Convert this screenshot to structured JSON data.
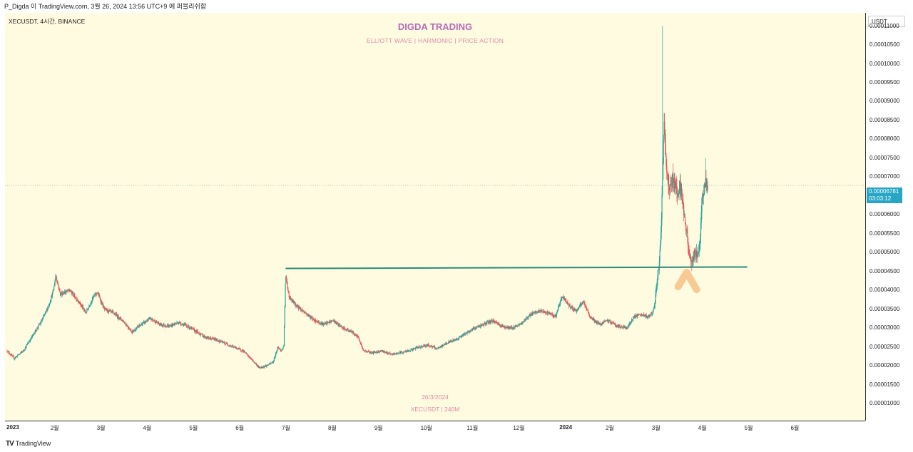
{
  "header": {
    "text": "P_Digda 이 TradingView.com, 3월 26, 2024 13:56 UTC+9 에 퍼블리쉬함"
  },
  "symbol_line": "XECUSDT, 4시간, BINANCE",
  "brand": {
    "title": "DIGDA TRADING",
    "subtitle": "ELLIOTT WAVE   |   HARMONIC   |   PRICE ACTION"
  },
  "watermark": {
    "date": "26/3/2024",
    "pair": "XECUSDT | 240M"
  },
  "currency": "USDT",
  "last_price": {
    "value": "0.00006781",
    "countdown": "03:03:12"
  },
  "footer": {
    "logo": "TradingView"
  },
  "colors": {
    "background": "#fffbe1",
    "up": "#26a69a",
    "down": "#ef5350",
    "support_line": "#2a8a7a",
    "marker": "#f5c48a",
    "price_badge": "#26a6c4"
  },
  "chart_data": {
    "type": "candlestick",
    "title": "DIGDA TRADING",
    "subtitle": "ELLIOTT WAVE | HARMONIC | PRICE ACTION",
    "symbol": "XECUSDT",
    "interval": "4시간",
    "exchange": "BINANCE",
    "y_ticks": [
      "0.00011000",
      "0.00010500",
      "0.00010000",
      "0.00009500",
      "0.00009000",
      "0.00008500",
      "0.00008000",
      "0.00007500",
      "0.00007000",
      "0.00006500",
      "0.00006000",
      "0.00005500",
      "0.00005000",
      "0.00004500",
      "0.00004000",
      "0.00003500",
      "0.00003000",
      "0.00002500",
      "0.00002000",
      "0.00001500",
      "0.00001000"
    ],
    "x_ticks": [
      {
        "label": "2023",
        "bold": true,
        "t": 0.0
      },
      {
        "label": "2월",
        "bold": false,
        "t": 1.0
      },
      {
        "label": "3월",
        "bold": false,
        "t": 2.0
      },
      {
        "label": "4월",
        "bold": false,
        "t": 3.0
      },
      {
        "label": "5월",
        "bold": false,
        "t": 4.0
      },
      {
        "label": "6월",
        "bold": false,
        "t": 5.0
      },
      {
        "label": "7월",
        "bold": false,
        "t": 6.0
      },
      {
        "label": "8월",
        "bold": false,
        "t": 7.0
      },
      {
        "label": "9월",
        "bold": false,
        "t": 8.0
      },
      {
        "label": "10월",
        "bold": false,
        "t": 9.0
      },
      {
        "label": "11월",
        "bold": false,
        "t": 10.0
      },
      {
        "label": "12월",
        "bold": false,
        "t": 11.0
      },
      {
        "label": "2024",
        "bold": true,
        "t": 12.0
      },
      {
        "label": "2월",
        "bold": false,
        "t": 13.0
      },
      {
        "label": "3월",
        "bold": false,
        "t": 14.0
      },
      {
        "label": "4월",
        "bold": false,
        "t": 15.0
      },
      {
        "label": "5월",
        "bold": false,
        "t": 16.0
      },
      {
        "label": "6월",
        "bold": false,
        "t": 17.0
      }
    ],
    "ylim": [
      5.5e-06,
      0.0001135
    ],
    "xlim": [
      0.0,
      18.55
    ],
    "price_path": [
      [
        0.0,
        2.4e-05
      ],
      [
        0.15,
        2.2e-05
      ],
      [
        0.35,
        2.4e-05
      ],
      [
        0.55,
        2.8e-05
      ],
      [
        0.75,
        3.2e-05
      ],
      [
        0.9,
        3.6e-05
      ],
      [
        1.0,
        4e-05
      ],
      [
        1.05,
        4.4e-05
      ],
      [
        1.15,
        3.9e-05
      ],
      [
        1.35,
        4e-05
      ],
      [
        1.55,
        3.7e-05
      ],
      [
        1.7,
        3.4e-05
      ],
      [
        1.85,
        3.8e-05
      ],
      [
        1.95,
        3.95e-05
      ],
      [
        2.1,
        3.5e-05
      ],
      [
        2.3,
        3.4e-05
      ],
      [
        2.5,
        3.2e-05
      ],
      [
        2.7,
        2.9e-05
      ],
      [
        2.9,
        3.1e-05
      ],
      [
        3.1,
        3.25e-05
      ],
      [
        3.3,
        3.1e-05
      ],
      [
        3.5,
        3.05e-05
      ],
      [
        3.7,
        3.15e-05
      ],
      [
        3.9,
        3.05e-05
      ],
      [
        4.1,
        2.9e-05
      ],
      [
        4.3,
        2.75e-05
      ],
      [
        4.5,
        2.7e-05
      ],
      [
        4.7,
        2.6e-05
      ],
      [
        4.9,
        2.5e-05
      ],
      [
        5.1,
        2.4e-05
      ],
      [
        5.3,
        2.15e-05
      ],
      [
        5.45,
        1.95e-05
      ],
      [
        5.6,
        2e-05
      ],
      [
        5.75,
        2.1e-05
      ],
      [
        5.85,
        2.5e-05
      ],
      [
        5.92,
        2.4e-05
      ],
      [
        5.98,
        2.5e-05
      ],
      [
        6.02,
        4.4e-05
      ],
      [
        6.1,
        3.8e-05
      ],
      [
        6.25,
        3.6e-05
      ],
      [
        6.45,
        3.4e-05
      ],
      [
        6.65,
        3.2e-05
      ],
      [
        6.85,
        3.1e-05
      ],
      [
        7.05,
        3.2e-05
      ],
      [
        7.25,
        3e-05
      ],
      [
        7.45,
        2.9e-05
      ],
      [
        7.6,
        2.75e-05
      ],
      [
        7.7,
        2.4e-05
      ],
      [
        7.9,
        2.35e-05
      ],
      [
        8.1,
        2.4e-05
      ],
      [
        8.3,
        2.3e-05
      ],
      [
        8.5,
        2.35e-05
      ],
      [
        8.7,
        2.4e-05
      ],
      [
        8.9,
        2.5e-05
      ],
      [
        9.1,
        2.55e-05
      ],
      [
        9.3,
        2.45e-05
      ],
      [
        9.5,
        2.6e-05
      ],
      [
        9.7,
        2.7e-05
      ],
      [
        9.9,
        2.85e-05
      ],
      [
        10.1,
        3e-05
      ],
      [
        10.3,
        3.1e-05
      ],
      [
        10.5,
        3.2e-05
      ],
      [
        10.7,
        3.05e-05
      ],
      [
        10.9,
        3e-05
      ],
      [
        11.1,
        3.1e-05
      ],
      [
        11.3,
        3.35e-05
      ],
      [
        11.5,
        3.45e-05
      ],
      [
        11.7,
        3.4e-05
      ],
      [
        11.85,
        3.3e-05
      ],
      [
        12.0,
        3.85e-05
      ],
      [
        12.15,
        3.6e-05
      ],
      [
        12.3,
        3.45e-05
      ],
      [
        12.45,
        3.7e-05
      ],
      [
        12.6,
        3.3e-05
      ],
      [
        12.8,
        3.1e-05
      ],
      [
        13.0,
        3.2e-05
      ],
      [
        13.2,
        3.05e-05
      ],
      [
        13.4,
        3e-05
      ],
      [
        13.55,
        3.3e-05
      ],
      [
        13.7,
        3.35e-05
      ],
      [
        13.85,
        3.3e-05
      ],
      [
        13.95,
        3.4e-05
      ],
      [
        14.0,
        3.6e-05
      ],
      [
        14.05,
        4.2e-05
      ],
      [
        14.1,
        4.8e-05
      ],
      [
        14.14,
        5.6e-05
      ],
      [
        14.17,
        7e-05
      ],
      [
        14.2,
        8.4e-05
      ],
      [
        14.24,
        7.6e-05
      ],
      [
        14.28,
        6.9e-05
      ],
      [
        14.34,
        6.7e-05
      ],
      [
        14.4,
        7e-05
      ],
      [
        14.48,
        6.6e-05
      ],
      [
        14.55,
        6.8e-05
      ],
      [
        14.62,
        6.2e-05
      ],
      [
        14.68,
        5.6e-05
      ],
      [
        14.75,
        4.9e-05
      ],
      [
        14.8,
        4.7e-05
      ],
      [
        14.86,
        5e-05
      ],
      [
        14.92,
        4.9e-05
      ],
      [
        14.97,
        5.2e-05
      ],
      [
        15.02,
        6.4e-05
      ],
      [
        15.08,
        6.8e-05
      ],
      [
        15.12,
        6.9e-05
      ],
      [
        15.15,
        6.78e-05
      ]
    ],
    "spikes": [
      {
        "t": 14.17,
        "high": 0.00011
      },
      {
        "t": 14.2,
        "high": 8.7e-05
      },
      {
        "t": 15.1,
        "high": 7.5e-05
      }
    ],
    "support_line": {
      "t_start": 6.02,
      "t_end": 16.0,
      "price_start": 4.58e-05,
      "price_end": 4.62e-05
    },
    "last_price_value": 6.781e-05
  }
}
